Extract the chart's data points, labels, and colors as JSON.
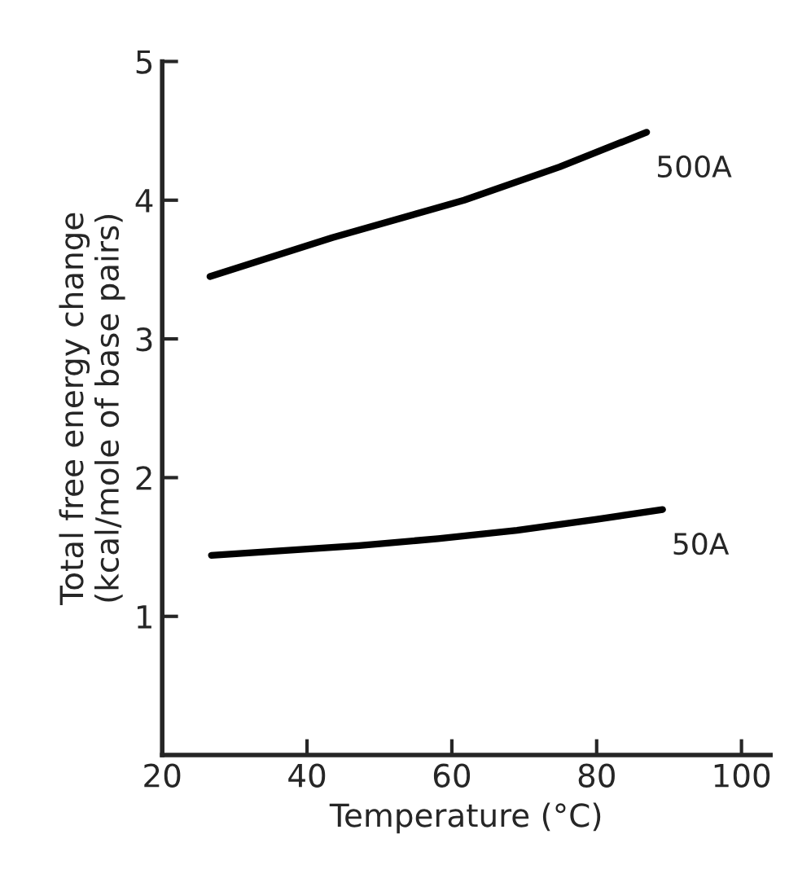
{
  "chart_data": {
    "type": "line",
    "xlabel": "Temperature (°C)",
    "ylabel": "Total free energy change\n(kcal/mole of base pairs)",
    "xlim": [
      20,
      104
    ],
    "ylim": [
      0,
      5
    ],
    "xticks": [
      20,
      40,
      60,
      80,
      100
    ],
    "yticks": [
      1,
      2,
      3,
      4,
      5
    ],
    "grid": false,
    "legend": false,
    "line_style": "solid",
    "marker": "none",
    "series": [
      {
        "name": "500A",
        "color": "#000000",
        "x": [
          26.6,
          43.5,
          61.7,
          74.9,
          86.9
        ],
        "values": [
          3.45,
          3.73,
          4.0,
          4.24,
          4.49
        ]
      },
      {
        "name": "50A",
        "color": "#000000",
        "x": [
          26.8,
          47.2,
          58.1,
          69,
          80,
          89.1
        ],
        "values": [
          1.44,
          1.51,
          1.56,
          1.62,
          1.7,
          1.77
        ]
      }
    ]
  }
}
